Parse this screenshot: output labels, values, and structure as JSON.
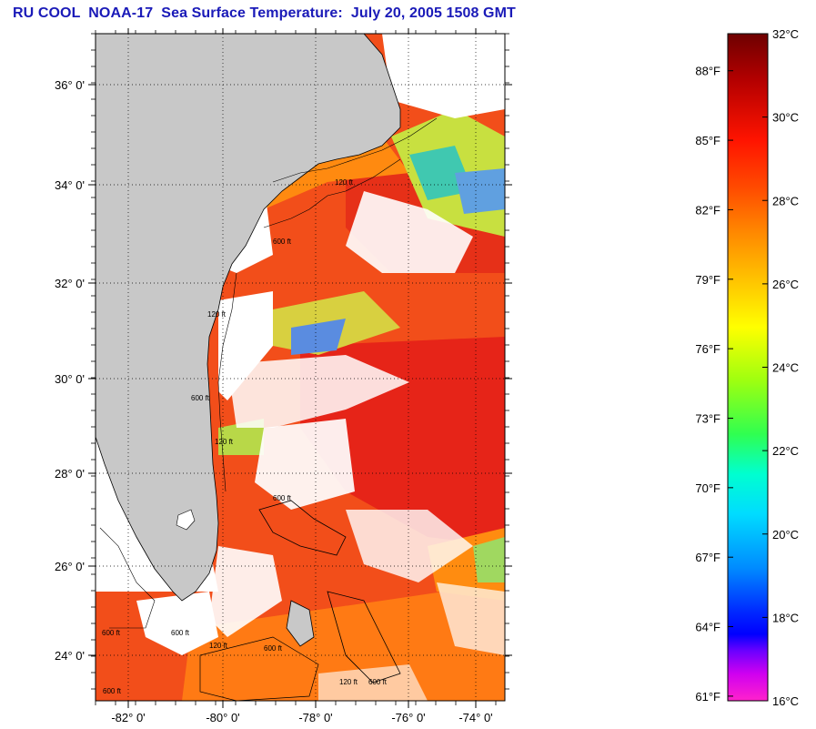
{
  "title": "RU COOL  NOAA-17  Sea Surface Temperature:  July 20, 2005 1508 GMT",
  "map": {
    "lon_labels": [
      "-82° 0'",
      "-80° 0'",
      "-78° 0'",
      "-76° 0'",
      "-74° 0'"
    ],
    "lat_labels": [
      "36° 0'",
      "34° 0'",
      "32° 0'",
      "30° 0'",
      "28° 0'",
      "26° 0'",
      "24° 0'"
    ],
    "contour_labels": [
      "120 ft",
      "600 ft",
      "120 ft",
      "600 ft",
      "120 ft",
      "600 ft",
      "600 ft",
      "600 ft",
      "120 ft",
      "600 ft",
      "120 ft",
      "600 ft",
      "600 ft"
    ],
    "colors": {
      "land": "#c8c8c8",
      "cloud": "#ffffff",
      "warm": "#f04418",
      "hot": "#e8201a"
    }
  },
  "colorbar": {
    "celsius_labels": [
      "32°C",
      "30°C",
      "28°C",
      "26°C",
      "24°C",
      "22°C",
      "20°C",
      "18°C",
      "16°C"
    ],
    "fahrenheit_labels": [
      "88°F",
      "85°F",
      "82°F",
      "79°F",
      "76°F",
      "73°F",
      "70°F",
      "67°F",
      "64°F",
      "61°F"
    ],
    "celsius_range": [
      16,
      32
    ],
    "gradient_colors": [
      "#7a0000",
      "#c80000",
      "#ff1a00",
      "#ff5a00",
      "#ff8c00",
      "#ffc800",
      "#ffff00",
      "#a8ff00",
      "#3cff3c",
      "#00ffc8",
      "#00e6ff",
      "#00a0ff",
      "#0050ff",
      "#0000ff",
      "#7000ff",
      "#c000ff",
      "#ff00ff",
      "#ff1ad0"
    ]
  }
}
